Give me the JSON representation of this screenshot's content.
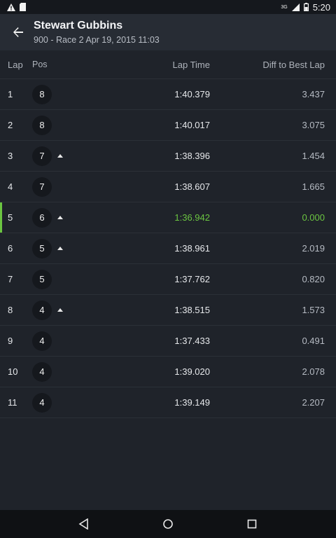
{
  "statusbar": {
    "time": "5:20",
    "network": "3G"
  },
  "header": {
    "title": "Stewart Gubbins",
    "subtitle": "900 - Race 2 Apr 19, 2015 11:03"
  },
  "columns": {
    "lap": "Lap",
    "pos": "Pos",
    "lap_time": "Lap Time",
    "diff": "Diff to Best Lap"
  },
  "rows": [
    {
      "lap": "1",
      "pos": "8",
      "up": false,
      "time": "1:40.379",
      "diff": "3.437",
      "best": false
    },
    {
      "lap": "2",
      "pos": "8",
      "up": false,
      "time": "1:40.017",
      "diff": "3.075",
      "best": false
    },
    {
      "lap": "3",
      "pos": "7",
      "up": true,
      "time": "1:38.396",
      "diff": "1.454",
      "best": false
    },
    {
      "lap": "4",
      "pos": "7",
      "up": false,
      "time": "1:38.607",
      "diff": "1.665",
      "best": false
    },
    {
      "lap": "5",
      "pos": "6",
      "up": true,
      "time": "1:36.942",
      "diff": "0.000",
      "best": true
    },
    {
      "lap": "6",
      "pos": "5",
      "up": true,
      "time": "1:38.961",
      "diff": "2.019",
      "best": false
    },
    {
      "lap": "7",
      "pos": "5",
      "up": false,
      "time": "1:37.762",
      "diff": "0.820",
      "best": false
    },
    {
      "lap": "8",
      "pos": "4",
      "up": true,
      "time": "1:38.515",
      "diff": "1.573",
      "best": false
    },
    {
      "lap": "9",
      "pos": "4",
      "up": false,
      "time": "1:37.433",
      "diff": "0.491",
      "best": false
    },
    {
      "lap": "10",
      "pos": "4",
      "up": false,
      "time": "1:39.020",
      "diff": "2.078",
      "best": false
    },
    {
      "lap": "11",
      "pos": "4",
      "up": false,
      "time": "1:39.149",
      "diff": "2.207",
      "best": false
    }
  ],
  "colors": {
    "best": "#6bc541",
    "background": "#1f232a",
    "appbar": "#272c34"
  }
}
